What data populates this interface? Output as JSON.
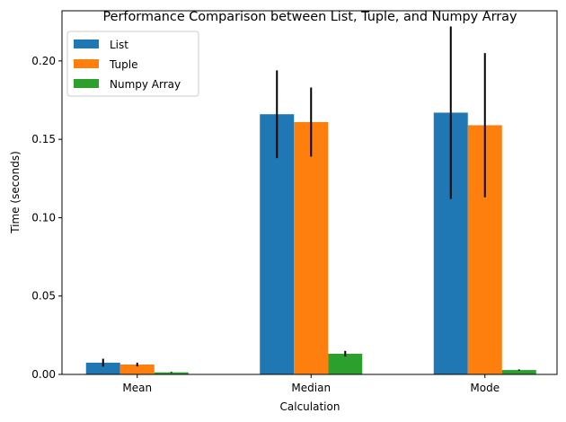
{
  "chart_data": {
    "type": "bar",
    "title": "Performance Comparison between List, Tuple, and Numpy Array",
    "xlabel": "Calculation",
    "ylabel": "Time (seconds)",
    "categories": [
      "Mean",
      "Median",
      "Mode"
    ],
    "ylim": [
      0,
      0.232
    ],
    "yticks": [
      "0.00",
      "0.05",
      "0.10",
      "0.15",
      "0.20"
    ],
    "ytick_values": [
      0,
      0.05,
      0.1,
      0.15,
      0.2
    ],
    "grid": false,
    "legend": "top-left",
    "series": [
      {
        "name": "List",
        "color": "#1f77b4",
        "values": [
          0.0075,
          0.166,
          0.167
        ],
        "errors": [
          0.0025,
          0.028,
          0.055
        ]
      },
      {
        "name": "Tuple",
        "color": "#ff7f0e",
        "values": [
          0.0063,
          0.161,
          0.159
        ],
        "errors": [
          0.0012,
          0.022,
          0.046
        ]
      },
      {
        "name": "Numpy Array",
        "color": "#2ca02c",
        "values": [
          0.0013,
          0.0132,
          0.0028
        ],
        "errors": [
          0.0003,
          0.0018,
          0.0004
        ]
      }
    ]
  }
}
